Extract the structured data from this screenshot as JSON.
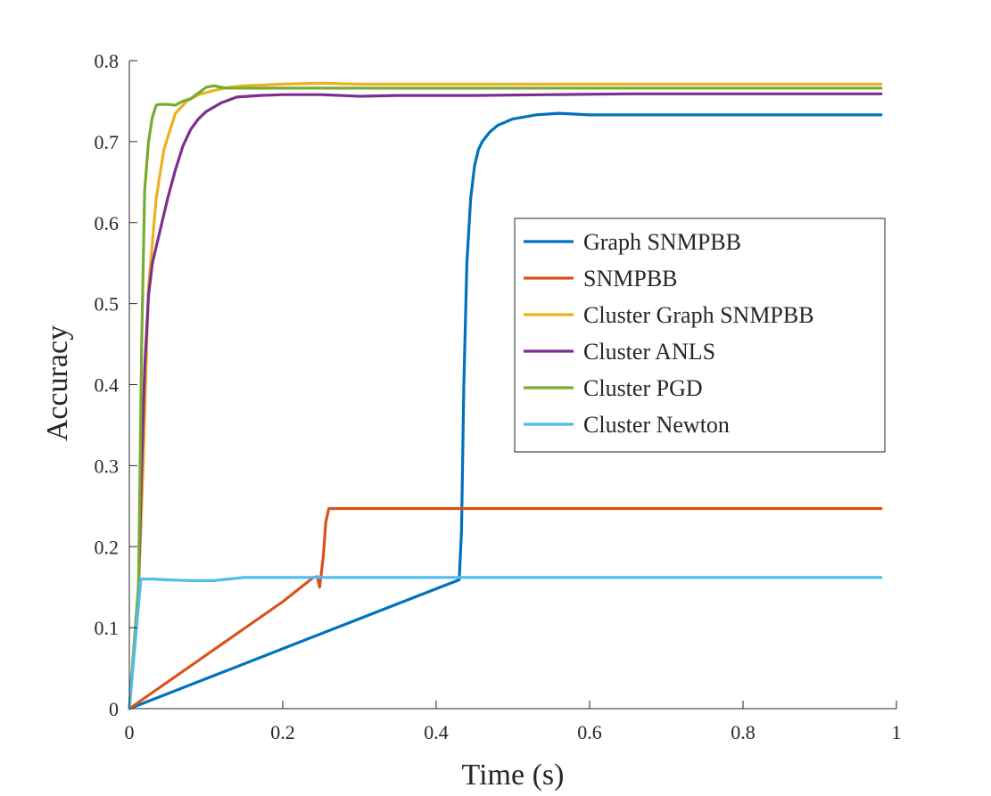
{
  "chart_data": {
    "type": "line",
    "title": "",
    "xlabel": "Time (s)",
    "ylabel": "Accuracy",
    "xlim": [
      0,
      1
    ],
    "ylim": [
      0,
      0.8
    ],
    "xticks": [
      0,
      0.2,
      0.4,
      0.6,
      0.8,
      1
    ],
    "xtick_labels": [
      "0",
      "0.2",
      "0.4",
      "0.6",
      "0.8",
      "1"
    ],
    "yticks": [
      0,
      0.1,
      0.2,
      0.3,
      0.4,
      0.5,
      0.6,
      0.7,
      0.8
    ],
    "ytick_labels": [
      "0",
      "0.1",
      "0.2",
      "0.3",
      "0.4",
      "0.5",
      "0.6",
      "0.7",
      "0.8"
    ],
    "grid": false,
    "legend_position": "right",
    "series": [
      {
        "name": "Graph SNMPBB",
        "color": "#0072BD",
        "x": [
          0,
          0.1,
          0.2,
          0.3,
          0.4,
          0.43,
          0.433,
          0.436,
          0.44,
          0.445,
          0.45,
          0.455,
          0.46,
          0.47,
          0.48,
          0.5,
          0.53,
          0.56,
          0.6,
          0.7,
          0.8,
          0.98
        ],
        "y": [
          0,
          0.037,
          0.074,
          0.111,
          0.148,
          0.159,
          0.22,
          0.4,
          0.55,
          0.63,
          0.67,
          0.69,
          0.7,
          0.712,
          0.72,
          0.728,
          0.733,
          0.735,
          0.733,
          0.733,
          0.733,
          0.733
        ]
      },
      {
        "name": "SNMPBB",
        "color": "#D95319",
        "x": [
          0,
          0.05,
          0.1,
          0.15,
          0.2,
          0.24,
          0.245,
          0.248,
          0.25,
          0.253,
          0.256,
          0.26,
          0.3,
          0.5,
          0.98
        ],
        "y": [
          0,
          0.033,
          0.066,
          0.099,
          0.132,
          0.162,
          0.163,
          0.15,
          0.165,
          0.19,
          0.23,
          0.247,
          0.247,
          0.247,
          0.247
        ]
      },
      {
        "name": "Cluster Graph SNMPBB",
        "color": "#EDB120",
        "x": [
          0,
          0.012,
          0.018,
          0.025,
          0.035,
          0.045,
          0.06,
          0.075,
          0.09,
          0.11,
          0.13,
          0.15,
          0.2,
          0.25,
          0.3,
          0.5,
          0.98
        ],
        "y": [
          0,
          0.15,
          0.3,
          0.52,
          0.63,
          0.69,
          0.735,
          0.75,
          0.758,
          0.763,
          0.767,
          0.769,
          0.771,
          0.772,
          0.771,
          0.771,
          0.771
        ]
      },
      {
        "name": "Cluster ANLS",
        "color": "#7E2F8E",
        "x": [
          0,
          0.012,
          0.016,
          0.02,
          0.025,
          0.03,
          0.04,
          0.05,
          0.06,
          0.07,
          0.08,
          0.09,
          0.1,
          0.12,
          0.14,
          0.17,
          0.2,
          0.25,
          0.3,
          0.35,
          0.45,
          0.55,
          0.65,
          0.8,
          0.98
        ],
        "y": [
          0,
          0.15,
          0.3,
          0.42,
          0.51,
          0.55,
          0.59,
          0.63,
          0.665,
          0.695,
          0.715,
          0.728,
          0.737,
          0.748,
          0.755,
          0.757,
          0.758,
          0.758,
          0.756,
          0.757,
          0.757,
          0.758,
          0.759,
          0.759,
          0.759
        ]
      },
      {
        "name": "Cluster PGD",
        "color": "#77AC30",
        "x": [
          0,
          0.012,
          0.016,
          0.02,
          0.025,
          0.03,
          0.035,
          0.04,
          0.05,
          0.06,
          0.07,
          0.08,
          0.09,
          0.1,
          0.11,
          0.12,
          0.13,
          0.15,
          0.2,
          0.3,
          0.98
        ],
        "y": [
          0,
          0.15,
          0.45,
          0.64,
          0.7,
          0.73,
          0.745,
          0.746,
          0.746,
          0.745,
          0.75,
          0.753,
          0.76,
          0.767,
          0.769,
          0.767,
          0.766,
          0.766,
          0.766,
          0.766,
          0.766
        ]
      },
      {
        "name": "Cluster Newton",
        "color": "#4DBEEE",
        "x": [
          0,
          0.015,
          0.03,
          0.05,
          0.08,
          0.11,
          0.13,
          0.15,
          0.2,
          0.4,
          0.6,
          0.98
        ],
        "y": [
          0,
          0.16,
          0.16,
          0.159,
          0.158,
          0.158,
          0.16,
          0.162,
          0.162,
          0.162,
          0.162,
          0.162
        ]
      }
    ]
  }
}
